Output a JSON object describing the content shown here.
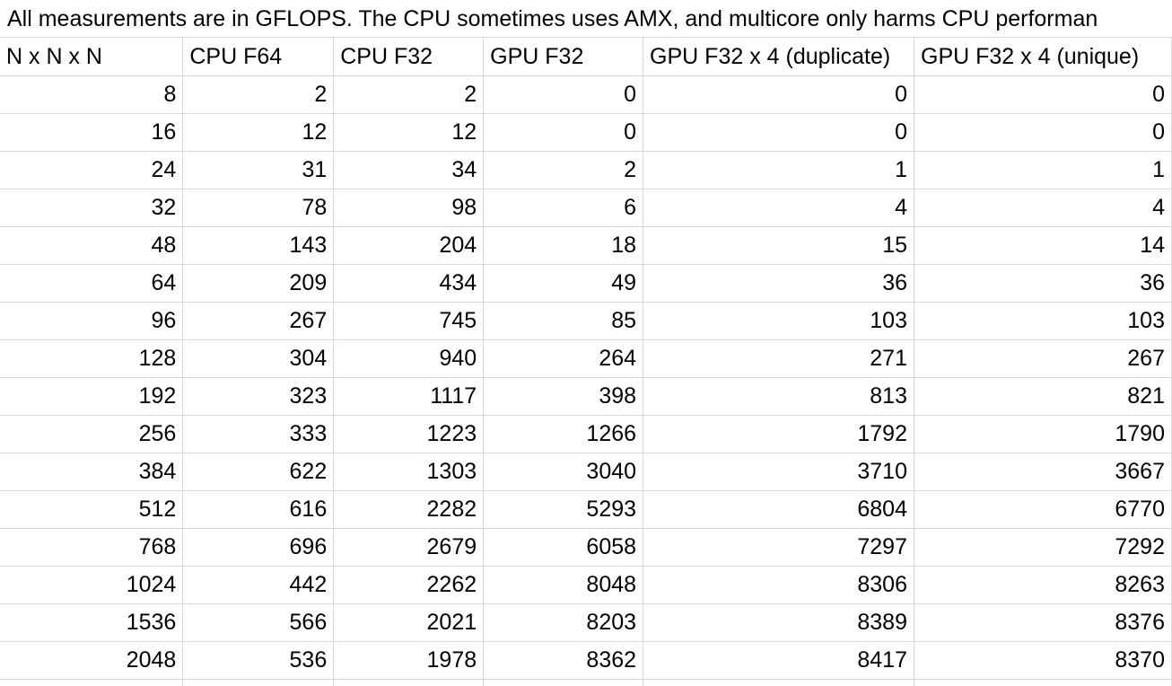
{
  "note": "All measurements are in GFLOPS. The CPU sometimes uses AMX, and multicore only harms CPU performan",
  "table": {
    "headers": [
      "N x N x N",
      "CPU F64",
      "CPU F32",
      "GPU F32",
      "GPU F32 x 4 (duplicate)",
      "GPU F32 x 4 (unique)"
    ],
    "rows": [
      [
        "8",
        "2",
        "2",
        "0",
        "0",
        "0"
      ],
      [
        "16",
        "12",
        "12",
        "0",
        "0",
        "0"
      ],
      [
        "24",
        "31",
        "34",
        "2",
        "1",
        "1"
      ],
      [
        "32",
        "78",
        "98",
        "6",
        "4",
        "4"
      ],
      [
        "48",
        "143",
        "204",
        "18",
        "15",
        "14"
      ],
      [
        "64",
        "209",
        "434",
        "49",
        "36",
        "36"
      ],
      [
        "96",
        "267",
        "745",
        "85",
        "103",
        "103"
      ],
      [
        "128",
        "304",
        "940",
        "264",
        "271",
        "267"
      ],
      [
        "192",
        "323",
        "1117",
        "398",
        "813",
        "821"
      ],
      [
        "256",
        "333",
        "1223",
        "1266",
        "1792",
        "1790"
      ],
      [
        "384",
        "622",
        "1303",
        "3040",
        "3710",
        "3667"
      ],
      [
        "512",
        "616",
        "2282",
        "5293",
        "6804",
        "6770"
      ],
      [
        "768",
        "696",
        "2679",
        "6058",
        "7297",
        "7292"
      ],
      [
        "1024",
        "442",
        "2262",
        "8048",
        "8306",
        "8263"
      ],
      [
        "1536",
        "566",
        "2021",
        "8203",
        "8389",
        "8376"
      ],
      [
        "2048",
        "536",
        "1978",
        "8362",
        "8417",
        "8370"
      ]
    ]
  }
}
